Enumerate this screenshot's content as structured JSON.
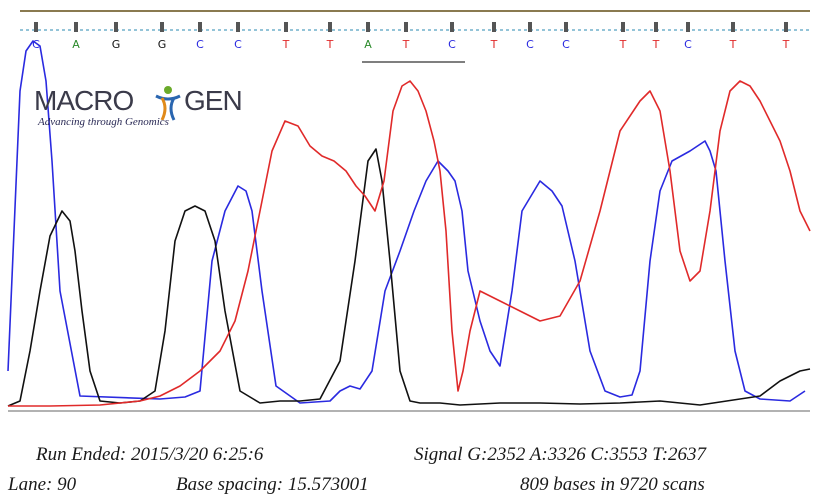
{
  "chart_data": {
    "type": "line",
    "title": "",
    "base_calls": [
      "C",
      "A",
      "G",
      "G",
      "C",
      "C",
      "T",
      "T",
      "A",
      "T",
      "C",
      "T",
      "C",
      "C",
      "T",
      "T",
      "C",
      "T",
      "T"
    ],
    "channel_colors": {
      "A": "#2a8a2a",
      "C": "#2a2ae0",
      "G": "#111111",
      "T": "#e02a2a"
    },
    "series": [
      {
        "channel": "C",
        "color": "#2a2ae0",
        "x": [
          8,
          20,
          26,
          33,
          40,
          46,
          52,
          60,
          80,
          160,
          185,
          200,
          212,
          225,
          238,
          246,
          252,
          262,
          276,
          300,
          330,
          340,
          350,
          360,
          372,
          385,
          400,
          414,
          426,
          438,
          448,
          455,
          462,
          468,
          480,
          490,
          500,
          512,
          522,
          540,
          552,
          562,
          575,
          590,
          605,
          620,
          632,
          640,
          650,
          660,
          672,
          690,
          705,
          710,
          716,
          725,
          735,
          745,
          760,
          790,
          805
        ],
        "y": [
          40,
          320,
          360,
          370,
          365,
          330,
          250,
          120,
          15,
          12,
          14,
          20,
          150,
          200,
          225,
          220,
          200,
          120,
          25,
          8,
          10,
          20,
          25,
          22,
          40,
          120,
          160,
          200,
          230,
          250,
          240,
          230,
          200,
          140,
          90,
          60,
          45,
          120,
          200,
          230,
          220,
          205,
          150,
          60,
          20,
          14,
          16,
          40,
          150,
          220,
          250,
          260,
          270,
          260,
          240,
          150,
          60,
          20,
          12,
          10,
          20
        ]
      },
      {
        "channel": "G",
        "color": "#111111",
        "x": [
          8,
          20,
          30,
          40,
          50,
          62,
          70,
          75,
          82,
          90,
          100,
          120,
          140,
          155,
          165,
          175,
          185,
          195,
          205,
          215,
          225,
          240,
          260,
          280,
          300,
          320,
          340,
          355,
          368,
          376,
          382,
          390,
          400,
          410,
          420,
          440,
          460,
          480,
          500,
          540,
          580,
          620,
          660,
          700,
          740,
          760,
          780,
          800,
          810
        ],
        "y": [
          5,
          10,
          60,
          120,
          175,
          200,
          190,
          160,
          100,
          40,
          10,
          8,
          10,
          20,
          80,
          170,
          200,
          205,
          200,
          170,
          100,
          20,
          8,
          10,
          10,
          12,
          50,
          150,
          250,
          262,
          230,
          150,
          40,
          10,
          8,
          8,
          6,
          7,
          8,
          8,
          7,
          8,
          10,
          6,
          12,
          15,
          30,
          40,
          42
        ]
      },
      {
        "channel": "T",
        "color": "#e02a2a",
        "x": [
          8,
          50,
          100,
          140,
          160,
          180,
          200,
          220,
          235,
          248,
          260,
          272,
          285,
          298,
          310,
          322,
          334,
          346,
          356,
          365,
          375,
          384,
          393,
          402,
          410,
          418,
          426,
          434,
          440,
          446,
          452,
          458,
          463,
          470,
          480,
          500,
          520,
          540,
          560,
          580,
          600,
          620,
          640,
          650,
          660,
          670,
          680,
          690,
          700,
          710,
          720,
          730,
          740,
          750,
          760,
          770,
          780,
          790,
          800,
          810
        ],
        "y": [
          5,
          5,
          6,
          10,
          15,
          25,
          40,
          60,
          90,
          140,
          200,
          260,
          290,
          285,
          265,
          255,
          250,
          240,
          225,
          215,
          200,
          230,
          300,
          325,
          330,
          320,
          300,
          270,
          240,
          180,
          80,
          20,
          40,
          80,
          120,
          110,
          100,
          90,
          95,
          130,
          200,
          280,
          310,
          320,
          300,
          240,
          160,
          130,
          140,
          200,
          280,
          320,
          330,
          325,
          310,
          290,
          270,
          240,
          200,
          180
        ]
      }
    ]
  },
  "logo": {
    "name": "MACROGEN",
    "tagline": "Advancing through Genomics"
  },
  "footer": {
    "run_ended": "Run Ended: 2015/3/20 6:25:6",
    "signal": "Signal G:2352 A:3326 C:3553 T:2637",
    "lane": "Lane: 90",
    "base_spacing": "Base spacing: 15.573001",
    "bases_scans": "809 bases in 9720 scans"
  }
}
